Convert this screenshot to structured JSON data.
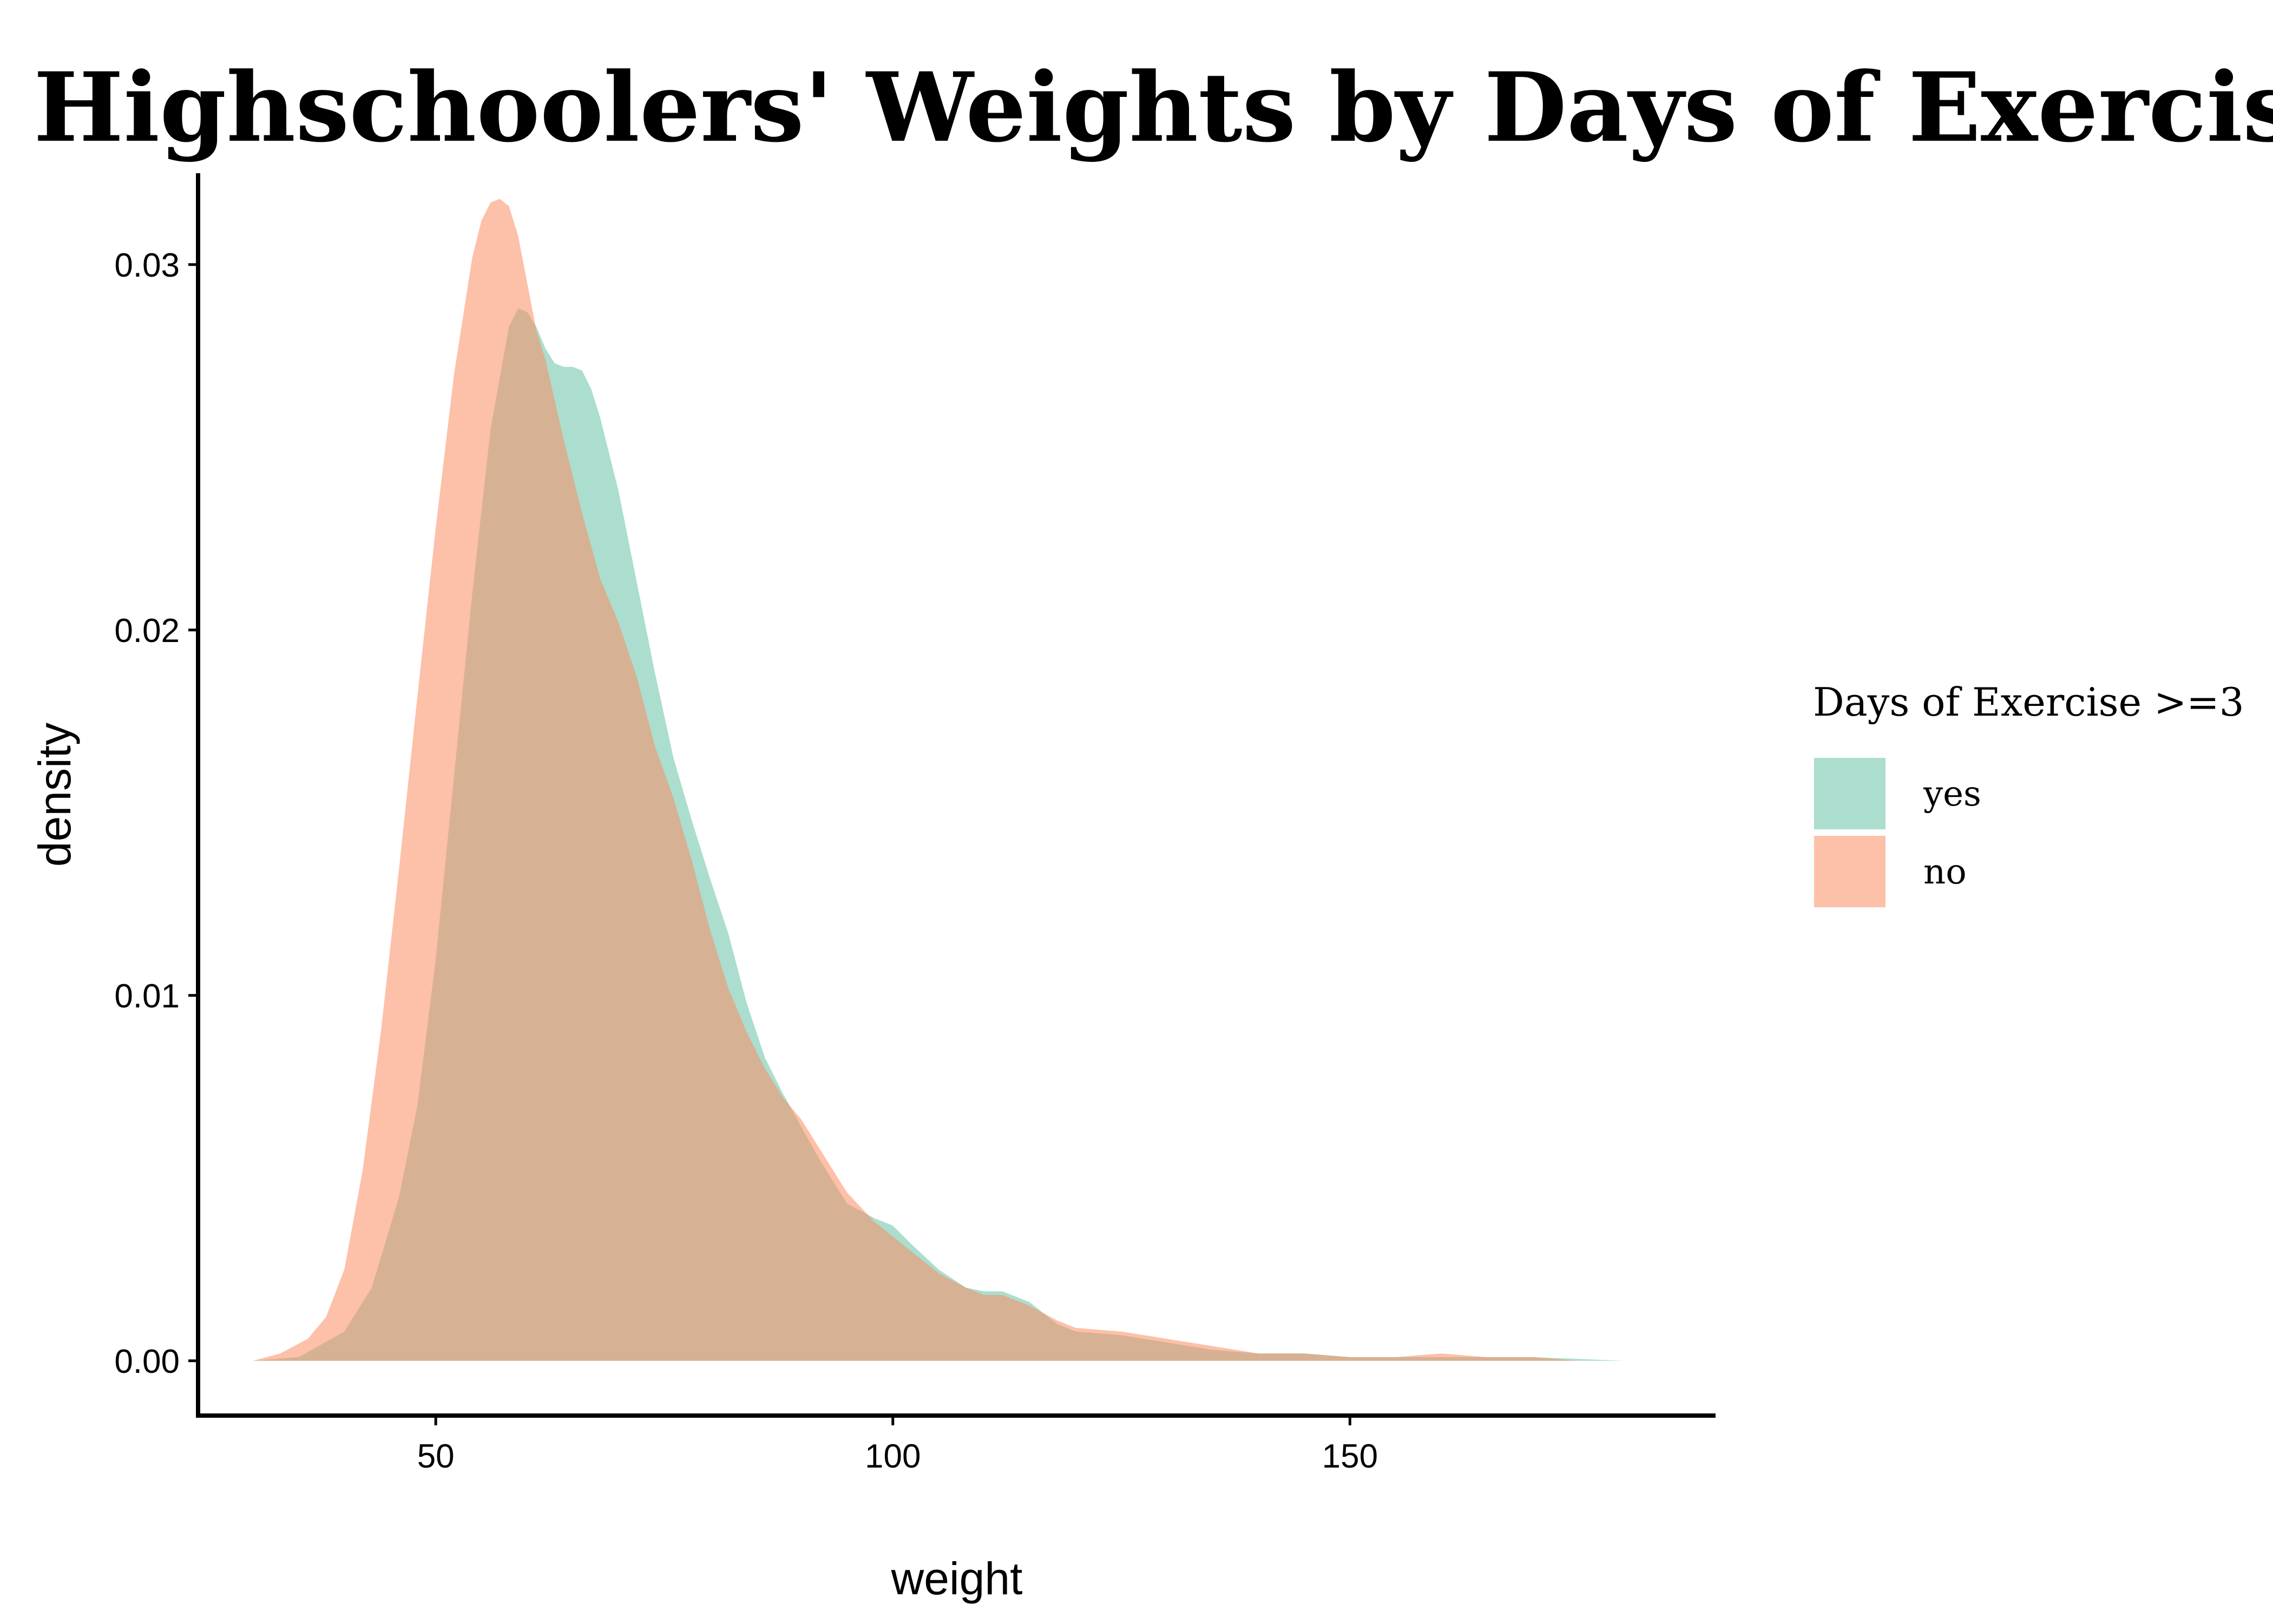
{
  "chart_data": {
    "type": "area",
    "subtype": "density",
    "title": "Highschoolers' Weights by Days of Exercise",
    "xlabel": "weight",
    "ylabel": "density",
    "xlim": [
      24,
      190
    ],
    "ylim": [
      -0.0015,
      0.0325
    ],
    "xticks": [
      50,
      100,
      150
    ],
    "yticks": [
      0.0,
      0.01,
      0.02,
      0.03
    ],
    "ytick_labels": [
      "0.00",
      "0.01",
      "0.02",
      "0.03"
    ],
    "grid": false,
    "legend": {
      "title": "Days of Exercise >=3",
      "position": "right",
      "entries": [
        "yes",
        "no"
      ]
    },
    "series": [
      {
        "name": "yes",
        "color": "#66c2a5",
        "x": [
          30,
          35,
          40,
          43,
          46,
          48,
          50,
          52,
          54,
          56,
          58,
          59,
          60,
          61,
          62,
          63,
          64,
          65,
          66,
          67,
          68,
          70,
          72,
          74,
          76,
          78,
          80,
          82,
          84,
          86,
          88,
          90,
          92,
          95,
          98,
          100,
          102,
          105,
          108,
          110,
          112,
          115,
          118,
          120,
          125,
          130,
          135,
          140,
          145,
          150,
          160,
          170,
          180
        ],
        "values": [
          0.0,
          0.0001,
          0.0008,
          0.002,
          0.0045,
          0.007,
          0.011,
          0.016,
          0.021,
          0.0255,
          0.0283,
          0.0288,
          0.0287,
          0.0283,
          0.0277,
          0.0273,
          0.0272,
          0.0272,
          0.0271,
          0.0266,
          0.0258,
          0.0238,
          0.0213,
          0.0188,
          0.0165,
          0.0148,
          0.0132,
          0.0117,
          0.0098,
          0.0083,
          0.0073,
          0.0064,
          0.0055,
          0.0043,
          0.0039,
          0.0037,
          0.0032,
          0.0025,
          0.002,
          0.0019,
          0.0019,
          0.0016,
          0.001,
          0.0008,
          0.0007,
          0.0005,
          0.0003,
          0.0002,
          0.0002,
          0.0001,
          0.0001,
          0.0001,
          0.0
        ]
      },
      {
        "name": "no",
        "color": "#fc8d62",
        "x": [
          30,
          33,
          36,
          38,
          40,
          42,
          44,
          46,
          48,
          50,
          52,
          54,
          55,
          56,
          57,
          58,
          59,
          60,
          61,
          62,
          64,
          66,
          68,
          70,
          72,
          74,
          76,
          78,
          80,
          82,
          84,
          86,
          88,
          90,
          92,
          95,
          98,
          100,
          102,
          105,
          108,
          110,
          112,
          115,
          118,
          120,
          125,
          130,
          135,
          140,
          145,
          150,
          155,
          160,
          165,
          170,
          175,
          180
        ],
        "values": [
          0.0,
          0.0002,
          0.0006,
          0.0012,
          0.0025,
          0.0052,
          0.009,
          0.0135,
          0.0182,
          0.0228,
          0.027,
          0.0302,
          0.0312,
          0.0317,
          0.0318,
          0.0316,
          0.0308,
          0.0295,
          0.0282,
          0.0274,
          0.0252,
          0.0232,
          0.0214,
          0.0202,
          0.0187,
          0.0168,
          0.0154,
          0.0137,
          0.0118,
          0.0102,
          0.009,
          0.008,
          0.0072,
          0.0066,
          0.0058,
          0.0046,
          0.0038,
          0.0034,
          0.003,
          0.0024,
          0.002,
          0.0018,
          0.0018,
          0.0015,
          0.0011,
          0.0009,
          0.0008,
          0.0006,
          0.0004,
          0.0002,
          0.0002,
          0.0001,
          0.0001,
          0.0002,
          0.0001,
          0.0001,
          0.0,
          0.0
        ]
      }
    ]
  }
}
